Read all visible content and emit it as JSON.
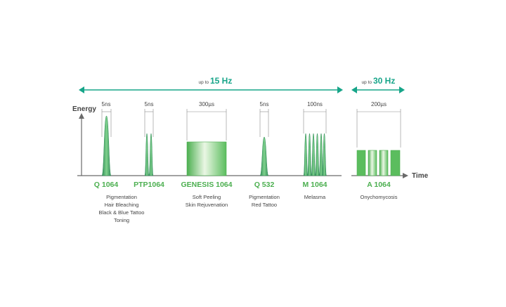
{
  "colors": {
    "teal": "#17a589",
    "green": "#4caf50",
    "dark_green": "#2e8b57",
    "light_green": "#eaf7e4",
    "axis": "#6a6a6a",
    "text": "#444444"
  },
  "axes": {
    "y_label": "Energy",
    "x_label": "Time"
  },
  "ranges": [
    {
      "prefix": "up to",
      "value": "15 Hz"
    },
    {
      "prefix": "up to",
      "value": "30 Hz"
    }
  ],
  "modes": [
    {
      "name": "Q 1064",
      "duration": "5ns",
      "pulse": "peak",
      "applications": [
        "Pigmentation",
        "Hair Bleaching",
        "Black & Blue Tattoo",
        "Toning"
      ]
    },
    {
      "name": "PTP1064",
      "duration": "5ns",
      "pulse": "double-peak",
      "applications": []
    },
    {
      "name": "GENESIS 1064",
      "duration": "300µs",
      "pulse": "block",
      "applications": [
        "Soft Peeling",
        "Skin Rejuvenation"
      ]
    },
    {
      "name": "Q 532",
      "duration": "5ns",
      "pulse": "peak",
      "applications": [
        "Pigmentation",
        "Red Tattoo"
      ]
    },
    {
      "name": "M 1064",
      "duration": "100ns",
      "pulse": "peak-train",
      "applications": [
        "Melasma"
      ]
    },
    {
      "name": "A 1064",
      "duration": "200µs",
      "pulse": "block-train",
      "applications": [
        "Onychomycosis"
      ]
    }
  ]
}
